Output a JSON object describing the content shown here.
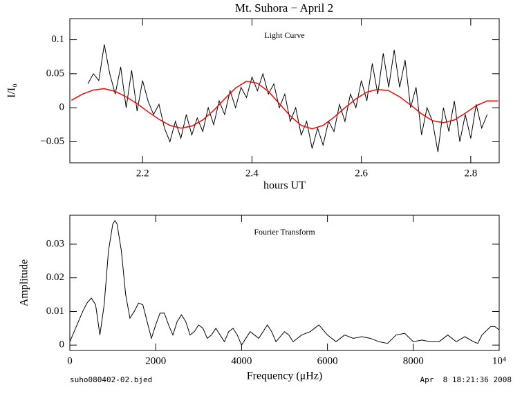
{
  "chart_data": [
    {
      "type": "line",
      "title": "Mt. Suhora − April 2",
      "annotation": "Light Curve",
      "x_label": "hours UT",
      "y_label": "I/I₀",
      "xlim": [
        2.067,
        2.852
      ],
      "xticks": [
        2.2,
        2.4,
        2.6,
        2.8
      ],
      "ylim": [
        -0.081,
        0.131
      ],
      "yticks": [
        {
          "value": -0.05,
          "label": "−0.05"
        },
        0,
        0.05,
        0.1
      ],
      "series": [
        {
          "color": "#000000",
          "x": [
            2.1,
            2.11,
            2.12,
            2.13,
            2.14,
            2.15,
            2.16,
            2.17,
            2.18,
            2.19,
            2.2,
            2.21,
            2.22,
            2.23,
            2.24,
            2.25,
            2.26,
            2.27,
            2.28,
            2.29,
            2.3,
            2.31,
            2.32,
            2.33,
            2.34,
            2.35,
            2.36,
            2.37,
            2.38,
            2.39,
            2.4,
            2.41,
            2.42,
            2.43,
            2.44,
            2.45,
            2.46,
            2.47,
            2.48,
            2.49,
            2.5,
            2.51,
            2.52,
            2.53,
            2.54,
            2.55,
            2.56,
            2.57,
            2.58,
            2.59,
            2.6,
            2.61,
            2.62,
            2.63,
            2.64,
            2.65,
            2.66,
            2.67,
            2.68,
            2.69,
            2.7,
            2.71,
            2.72,
            2.73,
            2.74,
            2.75,
            2.76,
            2.77,
            2.78,
            2.79,
            2.8,
            2.81,
            2.82,
            2.83
          ],
          "values": [
            0.035,
            0.05,
            0.04,
            0.093,
            0.05,
            0.02,
            0.06,
            0.0,
            0.055,
            -0.005,
            0.04,
            0.01,
            -0.01,
            0.005,
            -0.03,
            -0.05,
            -0.02,
            -0.045,
            -0.01,
            -0.04,
            -0.015,
            -0.035,
            0.0,
            -0.025,
            0.01,
            -0.01,
            0.025,
            0.0,
            0.03,
            0.015,
            0.045,
            0.025,
            0.05,
            0.02,
            0.035,
            0.0,
            0.02,
            -0.02,
            0.0,
            -0.04,
            -0.02,
            -0.06,
            -0.03,
            -0.055,
            -0.02,
            -0.035,
            0.005,
            -0.02,
            0.02,
            0.0,
            0.04,
            0.01,
            0.065,
            0.02,
            0.08,
            0.03,
            0.085,
            0.03,
            0.07,
            0.0,
            0.03,
            -0.04,
            0.0,
            -0.02,
            -0.065,
            0.0,
            -0.035,
            0.01,
            -0.05,
            -0.01,
            -0.045,
            0.005,
            -0.03,
            -0.01
          ]
        },
        {
          "color": "#ff0000",
          "x": [
            2.07,
            2.09,
            2.11,
            2.13,
            2.15,
            2.17,
            2.19,
            2.21,
            2.23,
            2.25,
            2.27,
            2.29,
            2.31,
            2.33,
            2.35,
            2.37,
            2.39,
            2.41,
            2.43,
            2.45,
            2.47,
            2.49,
            2.51,
            2.53,
            2.55,
            2.57,
            2.59,
            2.61,
            2.63,
            2.65,
            2.67,
            2.69,
            2.71,
            2.73,
            2.75,
            2.77,
            2.79,
            2.81,
            2.83,
            2.85
          ],
          "values": [
            0.011,
            0.02,
            0.026,
            0.028,
            0.024,
            0.016,
            0.006,
            -0.006,
            -0.017,
            -0.026,
            -0.03,
            -0.027,
            -0.018,
            -0.004,
            0.013,
            0.029,
            0.039,
            0.036,
            0.024,
            0.006,
            -0.012,
            -0.026,
            -0.031,
            -0.026,
            -0.014,
            0.0,
            0.013,
            0.023,
            0.027,
            0.025,
            0.016,
            0.004,
            -0.009,
            -0.019,
            -0.022,
            -0.018,
            -0.008,
            0.003,
            0.01,
            0.01
          ]
        }
      ]
    },
    {
      "type": "line",
      "annotation": "Fourier Transform",
      "x_label": "Frequency (μHz)",
      "y_label": "Amplitude",
      "xlim": [
        0,
        10000
      ],
      "xticks": [
        0,
        2000,
        4000,
        6000,
        8000,
        {
          "value": 10000,
          "label": "10⁴"
        }
      ],
      "ylim": [
        -0.0016,
        0.0386
      ],
      "yticks": [
        0,
        0.01,
        0.02,
        0.03
      ],
      "series": [
        {
          "color": "#000000",
          "x": [
            0,
            100,
            200,
            300,
            400,
            500,
            600,
            700,
            800,
            900,
            1000,
            1050,
            1100,
            1200,
            1300,
            1400,
            1500,
            1600,
            1700,
            1800,
            1900,
            2000,
            2100,
            2200,
            2300,
            2400,
            2500,
            2600,
            2700,
            2800,
            2900,
            3000,
            3100,
            3200,
            3300,
            3400,
            3500,
            3600,
            3700,
            3800,
            3900,
            4000,
            4100,
            4200,
            4300,
            4400,
            4500,
            4600,
            4700,
            4800,
            5000,
            5100,
            5200,
            5400,
            5600,
            5800,
            6000,
            6200,
            6400,
            6600,
            6800,
            7000,
            7200,
            7400,
            7600,
            7800,
            8000,
            8200,
            8400,
            8600,
            8800,
            9000,
            9200,
            9400,
            9500,
            9600,
            9800,
            9900,
            10000
          ],
          "values": [
            0.001,
            0.004,
            0.007,
            0.01,
            0.0125,
            0.014,
            0.012,
            0.003,
            0.012,
            0.028,
            0.036,
            0.037,
            0.036,
            0.028,
            0.015,
            0.008,
            0.01,
            0.0125,
            0.012,
            0.007,
            0.002,
            0.006,
            0.0095,
            0.0095,
            0.006,
            0.003,
            0.007,
            0.009,
            0.007,
            0.003,
            0.004,
            0.006,
            0.005,
            0.002,
            0.003,
            0.005,
            0.003,
            0.001,
            0.004,
            0.005,
            0.003,
            0.0,
            0.002,
            0.004,
            0.003,
            0.002,
            0.004,
            0.006,
            0.004,
            0.001,
            0.004,
            0.003,
            0.001,
            0.003,
            0.004,
            0.006,
            0.003,
            0.001,
            0.003,
            0.002,
            0.0025,
            0.002,
            0.001,
            0.0005,
            0.003,
            0.0035,
            0.001,
            0.0015,
            0.001,
            0.001,
            0.003,
            0.001,
            0.0025,
            0.001,
            0.0005,
            0.003,
            0.0055,
            0.0055,
            0.0045
          ]
        }
      ]
    }
  ],
  "footer": {
    "file": "suho080402-02.bjed",
    "timestamp": "Apr  8 18:21:36 2008"
  }
}
